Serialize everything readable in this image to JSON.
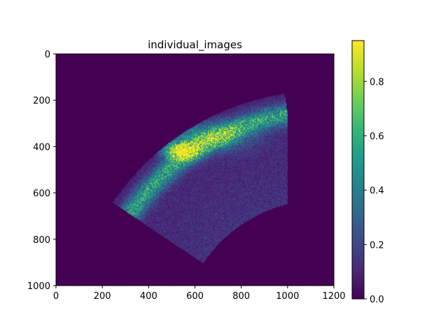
{
  "chart_data": {
    "type": "heatmap",
    "title": "individual_images",
    "xlabel": "",
    "ylabel": "",
    "x_range": [
      0,
      1200
    ],
    "y_range": [
      1000,
      0
    ],
    "x_ticks": [
      "0",
      "200",
      "400",
      "600",
      "800",
      "1000",
      "1200"
    ],
    "y_ticks": [
      "0",
      "200",
      "400",
      "600",
      "800",
      "1000"
    ],
    "colormap": "viridis",
    "colorbar": {
      "range": [
        0.0,
        0.95
      ],
      "ticks": [
        "0.0",
        "0.2",
        "0.4",
        "0.6",
        "0.8"
      ]
    },
    "background_value": 0.0,
    "peak_value": 0.9,
    "peak_location": [
      540,
      410
    ]
  },
  "colors": {
    "viridis": [
      "#440154",
      "#482878",
      "#3e4989",
      "#31688e",
      "#26828e",
      "#1f9e89",
      "#35b779",
      "#6ece58",
      "#b5de2b",
      "#fde725"
    ]
  }
}
